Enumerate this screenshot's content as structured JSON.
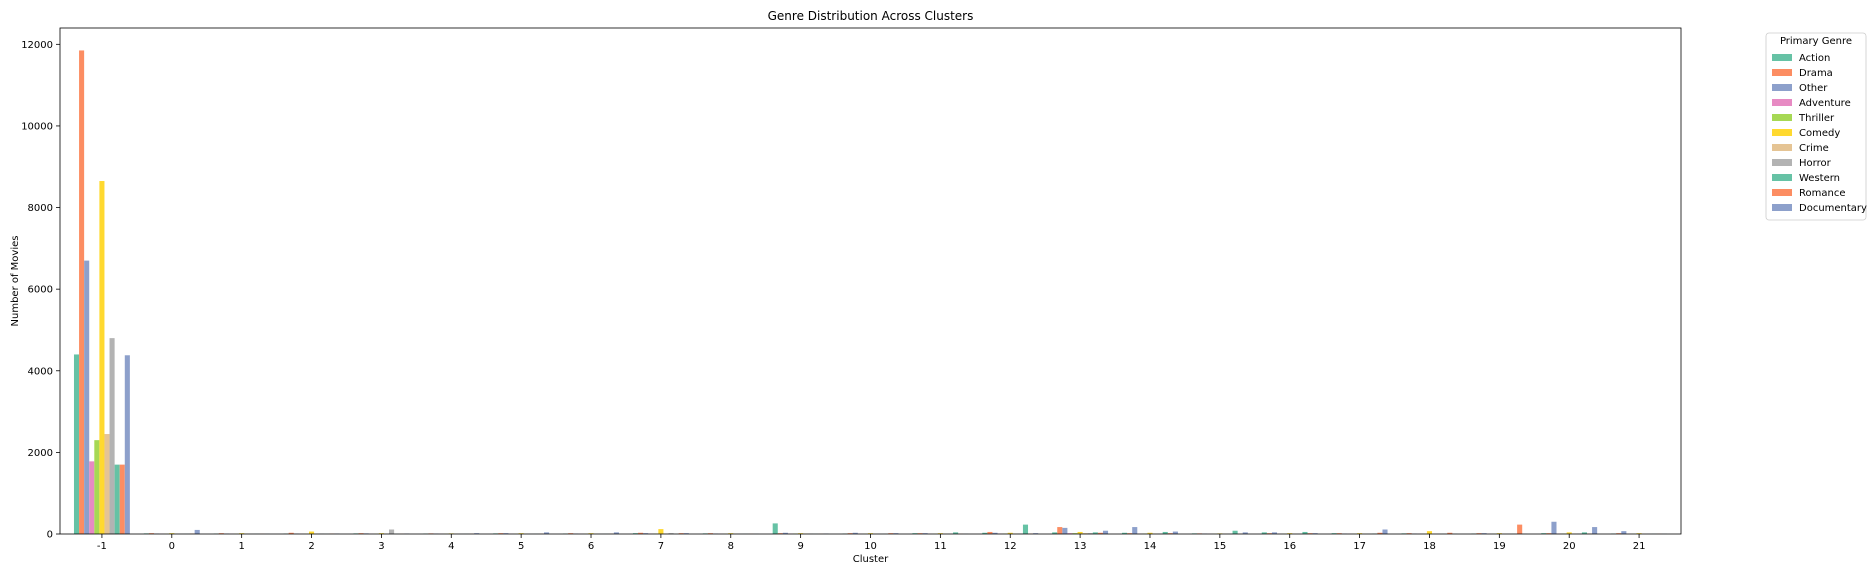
{
  "chart_data": {
    "type": "bar",
    "title": "Genre Distribution Across Clusters",
    "xlabel": "Cluster",
    "ylabel": "Number of Movies",
    "categories": [
      "-1",
      "0",
      "1",
      "2",
      "3",
      "4",
      "5",
      "6",
      "7",
      "8",
      "9",
      "10",
      "11",
      "12",
      "13",
      "14",
      "15",
      "16",
      "17",
      "18",
      "19",
      "20",
      "21"
    ],
    "ylim": [
      0,
      12400
    ],
    "yticks": [
      0,
      2000,
      4000,
      6000,
      8000,
      10000,
      12000
    ],
    "grid": false,
    "legend": {
      "title": "Primary Genre",
      "placement": "outside-top-right"
    },
    "series": [
      {
        "name": "Action",
        "color": "#66c2a5",
        "values": [
          4400,
          15,
          10,
          10,
          15,
          10,
          15,
          10,
          20,
          15,
          260,
          10,
          20,
          30,
          40,
          30,
          15,
          40,
          20,
          15,
          10,
          20,
          10
        ]
      },
      {
        "name": "Drama",
        "color": "#fc8d62",
        "values": [
          11850,
          20,
          20,
          30,
          20,
          15,
          20,
          20,
          30,
          20,
          20,
          20,
          20,
          50,
          170,
          20,
          15,
          20,
          20,
          20,
          20,
          20,
          20
        ]
      },
      {
        "name": "Other",
        "color": "#8da0cb",
        "values": [
          6700,
          10,
          10,
          10,
          15,
          10,
          20,
          10,
          20,
          10,
          30,
          30,
          20,
          30,
          150,
          170,
          10,
          40,
          10,
          10,
          20,
          300,
          70
        ]
      },
      {
        "name": "Adventure",
        "color": "#e78ac3",
        "values": [
          1780,
          5,
          5,
          5,
          5,
          5,
          5,
          5,
          10,
          5,
          10,
          5,
          5,
          10,
          20,
          10,
          5,
          5,
          5,
          5,
          5,
          10,
          5
        ]
      },
      {
        "name": "Thriller",
        "color": "#a6d854",
        "values": [
          2300,
          5,
          5,
          5,
          5,
          5,
          5,
          5,
          10,
          5,
          10,
          5,
          5,
          10,
          20,
          10,
          5,
          5,
          5,
          5,
          5,
          10,
          5
        ]
      },
      {
        "name": "Comedy",
        "color": "#ffd92f",
        "values": [
          8650,
          20,
          20,
          60,
          20,
          15,
          20,
          20,
          120,
          20,
          20,
          20,
          20,
          30,
          50,
          30,
          15,
          20,
          20,
          70,
          20,
          40,
          20
        ]
      },
      {
        "name": "Crime",
        "color": "#e5c494",
        "values": [
          2450,
          5,
          5,
          5,
          5,
          5,
          5,
          5,
          10,
          5,
          10,
          5,
          5,
          10,
          20,
          10,
          5,
          5,
          5,
          5,
          5,
          10,
          5
        ]
      },
      {
        "name": "Horror",
        "color": "#b3b3b3",
        "values": [
          4800,
          5,
          5,
          10,
          110,
          5,
          5,
          5,
          20,
          5,
          10,
          5,
          5,
          10,
          20,
          10,
          5,
          5,
          5,
          5,
          5,
          10,
          5
        ]
      },
      {
        "name": "Western",
        "color": "#66c2a5",
        "values": [
          1700,
          5,
          5,
          5,
          5,
          5,
          5,
          5,
          5,
          5,
          5,
          5,
          40,
          230,
          40,
          50,
          80,
          50,
          10,
          5,
          5,
          40,
          5
        ]
      },
      {
        "name": "Romance",
        "color": "#fc8d62",
        "values": [
          1700,
          10,
          5,
          10,
          5,
          5,
          5,
          5,
          20,
          5,
          5,
          20,
          5,
          10,
          30,
          20,
          5,
          20,
          30,
          30,
          230,
          10,
          5
        ]
      },
      {
        "name": "Documentary",
        "color": "#8da0cb",
        "values": [
          4380,
          100,
          5,
          10,
          10,
          20,
          40,
          40,
          20,
          5,
          10,
          20,
          5,
          20,
          80,
          60,
          40,
          20,
          110,
          5,
          5,
          170,
          5
        ]
      }
    ]
  }
}
